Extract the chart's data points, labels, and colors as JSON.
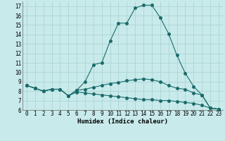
{
  "xlabel": "Humidex (Indice chaleur)",
  "background_color": "#c8eaea",
  "grid_color": "#a8d0d0",
  "line_color": "#1a6b6b",
  "x_values": [
    0,
    1,
    2,
    3,
    4,
    5,
    6,
    7,
    8,
    9,
    10,
    11,
    12,
    13,
    14,
    15,
    16,
    17,
    18,
    19,
    20,
    21,
    22,
    23
  ],
  "line1": [
    8.6,
    8.3,
    8.0,
    8.2,
    8.2,
    7.5,
    8.1,
    9.0,
    10.8,
    11.0,
    13.3,
    15.2,
    15.2,
    16.8,
    17.1,
    17.1,
    15.8,
    14.1,
    11.8,
    9.9,
    8.5,
    7.6,
    6.2,
    6.1
  ],
  "line2": [
    8.6,
    8.3,
    8.0,
    8.2,
    8.2,
    7.5,
    8.1,
    8.2,
    8.4,
    8.6,
    8.8,
    8.9,
    9.1,
    9.2,
    9.3,
    9.2,
    9.0,
    8.6,
    8.3,
    8.2,
    7.8,
    7.6,
    6.2,
    6.1
  ],
  "line3": [
    8.6,
    8.3,
    8.0,
    8.2,
    8.2,
    7.5,
    7.9,
    7.8,
    7.7,
    7.6,
    7.5,
    7.4,
    7.3,
    7.2,
    7.1,
    7.1,
    7.0,
    7.0,
    6.9,
    6.8,
    6.7,
    6.5,
    6.2,
    6.1
  ],
  "ylim": [
    6,
    17.5
  ],
  "xlim": [
    -0.5,
    23.5
  ],
  "yticks": [
    6,
    7,
    8,
    9,
    10,
    11,
    12,
    13,
    14,
    15,
    16,
    17
  ],
  "xticks": [
    0,
    1,
    2,
    3,
    4,
    5,
    6,
    7,
    8,
    9,
    10,
    11,
    12,
    13,
    14,
    15,
    16,
    17,
    18,
    19,
    20,
    21,
    22,
    23
  ],
  "xlabel_fontsize": 6.5,
  "tick_fontsize": 5.5
}
